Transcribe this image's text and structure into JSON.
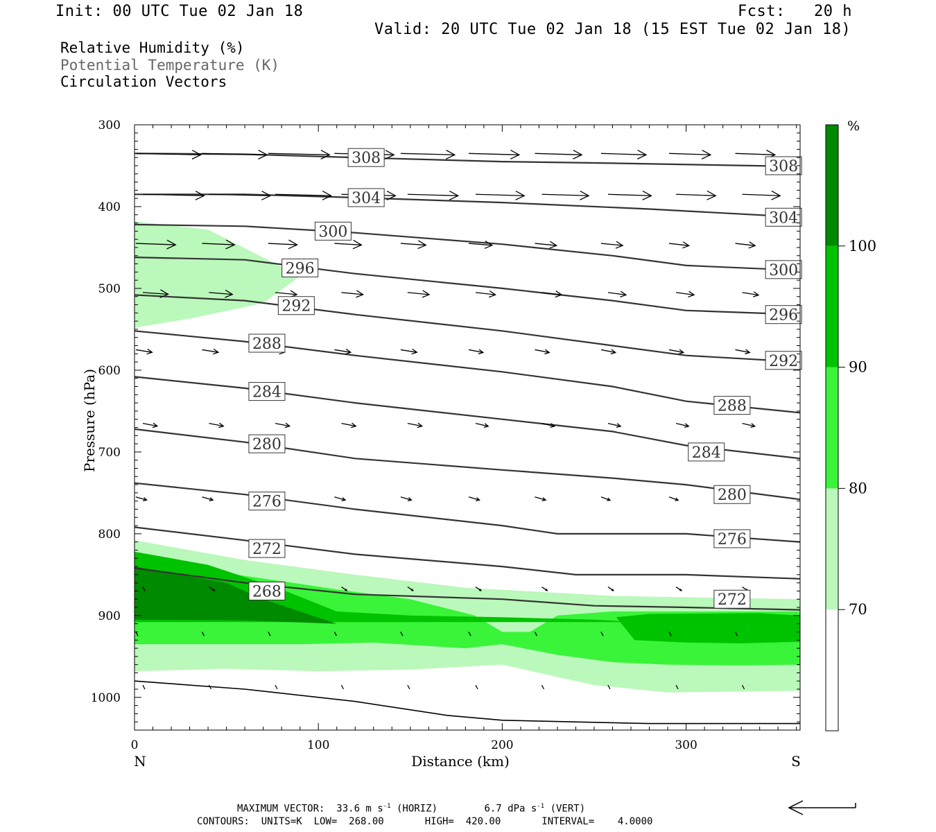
{
  "header": {
    "init": "Init: 00 UTC Tue 02 Jan 18",
    "fcst": "Fcst:   20 h",
    "valid": "Valid: 20 UTC Tue 02 Jan 18 (15 EST Tue 02 Jan 18)"
  },
  "legend": {
    "rh": "Relative Humidity (%)",
    "theta": "Potential Temperature (K)",
    "vectors": "Circulation Vectors"
  },
  "footer": {
    "line1_a": "MAXIMUM VECTOR:  33.6 m s",
    "line1_b": " (HORIZ)",
    "line1_c": "6.7 dPa s",
    "line1_d": " (VERT)",
    "exp": "-1",
    "line2": "CONTOURS:  UNITS=K  LOW=  268.00       HIGH=  420.00       INTERVAL=    4.0000"
  },
  "chart_data": {
    "type": "cross-section",
    "xlabel": "Distance (km)",
    "ylabel": "Pressure (hPa)",
    "x_left_label": "N",
    "x_right_label": "S",
    "xlim": [
      0,
      362
    ],
    "ylim": [
      1040,
      300
    ],
    "x_ticks": [
      0,
      100,
      200,
      300
    ],
    "y_ticks": [
      300,
      400,
      500,
      600,
      700,
      800,
      900,
      1000
    ],
    "colorbar": {
      "unit": "%",
      "levels": [
        70,
        80,
        90,
        100
      ],
      "colors": [
        "#ffffff",
        "#bbf8bb",
        "#39f439",
        "#00c300",
        "#008a00"
      ]
    },
    "rh_regions": [
      {
        "level": 80,
        "color": "#bbf8bb",
        "points": [
          [
            0,
            418
          ],
          [
            40,
            428
          ],
          [
            90,
            485
          ],
          [
            70,
            518
          ],
          [
            30,
            537
          ],
          [
            0,
            548
          ]
        ]
      },
      {
        "level": 80,
        "color": "#bbf8bb",
        "points": [
          [
            0,
            808
          ],
          [
            60,
            832
          ],
          [
            120,
            850
          ],
          [
            180,
            866
          ],
          [
            260,
            876
          ],
          [
            362,
            880
          ],
          [
            362,
            992
          ],
          [
            290,
            994
          ],
          [
            250,
            985
          ],
          [
            200,
            960
          ],
          [
            150,
            966
          ],
          [
            100,
            968
          ],
          [
            50,
            965
          ],
          [
            0,
            968
          ]
        ]
      },
      {
        "level": 90,
        "color": "#39f439",
        "points": [
          [
            0,
            830
          ],
          [
            40,
            845
          ],
          [
            80,
            858
          ],
          [
            110,
            868
          ],
          [
            150,
            880
          ],
          [
            185,
            900
          ],
          [
            200,
            920
          ],
          [
            215,
            920
          ],
          [
            230,
            900
          ],
          [
            260,
            895
          ],
          [
            362,
            895
          ],
          [
            362,
            960
          ],
          [
            330,
            961
          ],
          [
            290,
            960
          ],
          [
            260,
            957
          ],
          [
            230,
            948
          ],
          [
            200,
            935
          ],
          [
            180,
            940
          ],
          [
            130,
            933
          ],
          [
            90,
            935
          ],
          [
            40,
            935
          ],
          [
            0,
            935
          ]
        ]
      },
      {
        "level": 100,
        "color": "#00c300",
        "points": [
          [
            0,
            822
          ],
          [
            40,
            838
          ],
          [
            80,
            868
          ],
          [
            110,
            895
          ],
          [
            150,
            900
          ],
          [
            200,
            902
          ],
          [
            250,
            905
          ],
          [
            290,
            910
          ],
          [
            362,
            912
          ],
          [
            362,
            908
          ],
          [
            0,
            908
          ]
        ]
      },
      {
        "level": 100,
        "color": "#00c300",
        "points": [
          [
            262,
            902
          ],
          [
            280,
            898
          ],
          [
            340,
            897
          ],
          [
            362,
            900
          ],
          [
            362,
            932
          ],
          [
            330,
            934
          ],
          [
            300,
            933
          ],
          [
            272,
            930
          ]
        ]
      },
      {
        "level": 110,
        "color": "#008a00",
        "points": [
          [
            0,
            840
          ],
          [
            20,
            848
          ],
          [
            50,
            860
          ],
          [
            70,
            880
          ],
          [
            110,
            910
          ],
          [
            60,
            906
          ],
          [
            0,
            905
          ]
        ]
      }
    ],
    "isentropes": [
      {
        "theta": 308,
        "label_pos": [
          [
            126,
            340
          ],
          [
            353,
            350
          ]
        ],
        "points": [
          [
            0,
            335
          ],
          [
            60,
            336
          ],
          [
            120,
            340
          ],
          [
            200,
            345
          ],
          [
            260,
            347
          ],
          [
            362,
            351
          ]
        ]
      },
      {
        "theta": 304,
        "label_pos": [
          [
            126,
            389
          ],
          [
            353,
            413
          ]
        ],
        "points": [
          [
            0,
            385
          ],
          [
            60,
            385
          ],
          [
            120,
            389
          ],
          [
            200,
            395
          ],
          [
            280,
            403
          ],
          [
            362,
            413
          ]
        ]
      },
      {
        "theta": 300,
        "label_pos": [
          [
            108,
            430
          ],
          [
            353,
            477
          ]
        ],
        "points": [
          [
            0,
            422
          ],
          [
            60,
            424
          ],
          [
            120,
            432
          ],
          [
            200,
            446
          ],
          [
            260,
            460
          ],
          [
            300,
            472
          ],
          [
            362,
            478
          ]
        ]
      },
      {
        "theta": 296,
        "label_pos": [
          [
            90,
            475
          ],
          [
            353,
            532
          ]
        ],
        "points": [
          [
            0,
            462
          ],
          [
            60,
            465
          ],
          [
            120,
            482
          ],
          [
            200,
            500
          ],
          [
            260,
            515
          ],
          [
            300,
            527
          ],
          [
            362,
            532
          ]
        ]
      },
      {
        "theta": 292,
        "label_pos": [
          [
            88,
            521
          ],
          [
            353,
            588
          ]
        ],
        "points": [
          [
            0,
            508
          ],
          [
            60,
            515
          ],
          [
            120,
            532
          ],
          [
            200,
            552
          ],
          [
            260,
            570
          ],
          [
            300,
            582
          ],
          [
            362,
            590
          ]
        ]
      },
      {
        "theta": 288,
        "label_pos": [
          [
            72,
            567
          ],
          [
            325,
            643
          ]
        ],
        "points": [
          [
            0,
            552
          ],
          [
            60,
            565
          ],
          [
            120,
            582
          ],
          [
            200,
            602
          ],
          [
            260,
            620
          ],
          [
            300,
            638
          ],
          [
            362,
            652
          ]
        ]
      },
      {
        "theta": 284,
        "label_pos": [
          [
            72,
            626
          ],
          [
            311,
            700
          ]
        ],
        "points": [
          [
            0,
            608
          ],
          [
            60,
            622
          ],
          [
            120,
            640
          ],
          [
            200,
            660
          ],
          [
            260,
            675
          ],
          [
            300,
            692
          ],
          [
            362,
            708
          ]
        ]
      },
      {
        "theta": 280,
        "label_pos": [
          [
            72,
            690
          ],
          [
            325,
            752
          ]
        ],
        "points": [
          [
            0,
            672
          ],
          [
            60,
            688
          ],
          [
            120,
            708
          ],
          [
            200,
            722
          ],
          [
            260,
            732
          ],
          [
            300,
            740
          ],
          [
            362,
            758
          ]
        ]
      },
      {
        "theta": 276,
        "label_pos": [
          [
            72,
            760
          ],
          [
            325,
            806
          ]
        ],
        "points": [
          [
            0,
            738
          ],
          [
            60,
            752
          ],
          [
            120,
            770
          ],
          [
            200,
            790
          ],
          [
            230,
            800
          ],
          [
            300,
            800
          ],
          [
            362,
            810
          ]
        ]
      },
      {
        "theta": 272,
        "label_pos": [
          [
            72,
            818
          ],
          [
            325,
            880
          ]
        ],
        "points": [
          [
            0,
            792
          ],
          [
            60,
            808
          ],
          [
            120,
            825
          ],
          [
            200,
            840
          ],
          [
            240,
            850
          ],
          [
            300,
            850
          ],
          [
            362,
            855
          ]
        ]
      },
      {
        "theta": 268,
        "label_pos": [
          [
            72,
            870
          ]
        ],
        "points": [
          [
            0,
            842
          ],
          [
            60,
            860
          ],
          [
            120,
            874
          ],
          [
            200,
            880
          ],
          [
            250,
            888
          ],
          [
            300,
            890
          ],
          [
            362,
            893
          ]
        ]
      }
    ],
    "surface_line": {
      "points": [
        [
          0,
          980
        ],
        [
          60,
          990
        ],
        [
          120,
          1005
        ],
        [
          170,
          1022
        ],
        [
          200,
          1028
        ],
        [
          280,
          1032
        ],
        [
          362,
          1032
        ]
      ]
    },
    "vectors_grid": {
      "x": [
        0,
        36,
        72,
        108,
        144,
        181,
        217,
        253,
        290,
        326
      ],
      "p": [
        335,
        385,
        445,
        505,
        575,
        665,
        755,
        865,
        920,
        985
      ],
      "u": [
        [
          36,
          36,
          34,
          33,
          30,
          28,
          26,
          25,
          23,
          22
        ],
        [
          34,
          34,
          31,
          30,
          28,
          27,
          26,
          24,
          22,
          21
        ],
        [
          22,
          18,
          16,
          15,
          14,
          13,
          12,
          12,
          11,
          11
        ],
        [
          14,
          13,
          12,
          12,
          12,
          11,
          11,
          10,
          10,
          9
        ],
        [
          9,
          9,
          9,
          9,
          9,
          8,
          8,
          8,
          8,
          8
        ],
        [
          8,
          8,
          8,
          8,
          8,
          7,
          7,
          7,
          7,
          7
        ],
        [
          6,
          6,
          6,
          6,
          6,
          6,
          6,
          5,
          5,
          5
        ],
        [
          0,
          3,
          3,
          3,
          3,
          3,
          3,
          3,
          3,
          3
        ],
        [
          0,
          1,
          1,
          1,
          1,
          1,
          1,
          1,
          1,
          1
        ],
        [
          0,
          1,
          1,
          1,
          1,
          1,
          1,
          1,
          1,
          1
        ]
      ]
    }
  }
}
